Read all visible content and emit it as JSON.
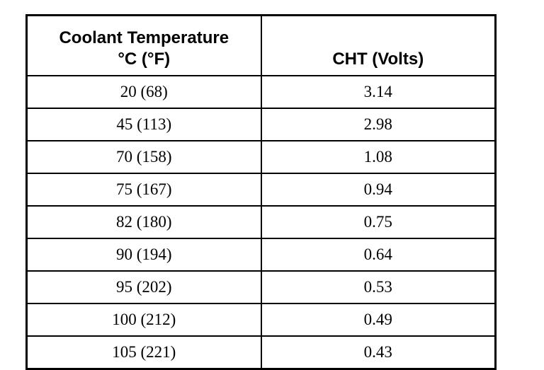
{
  "table": {
    "col1_header_line1": "Coolant Temperature",
    "col1_header_line2": "°C (°F)",
    "col2_header": "CHT (Volts)",
    "rows": [
      {
        "temp": "20 (68)",
        "volts": "3.14"
      },
      {
        "temp": "45 (113)",
        "volts": "2.98"
      },
      {
        "temp": "70 (158)",
        "volts": "1.08"
      },
      {
        "temp": "75 (167)",
        "volts": "0.94"
      },
      {
        "temp": "82 (180)",
        "volts": "0.75"
      },
      {
        "temp": "90 (194)",
        "volts": "0.64"
      },
      {
        "temp": "95 (202)",
        "volts": "0.53"
      },
      {
        "temp": "100 (212)",
        "volts": "0.49"
      },
      {
        "temp": "105 (221)",
        "volts": "0.43"
      }
    ]
  }
}
